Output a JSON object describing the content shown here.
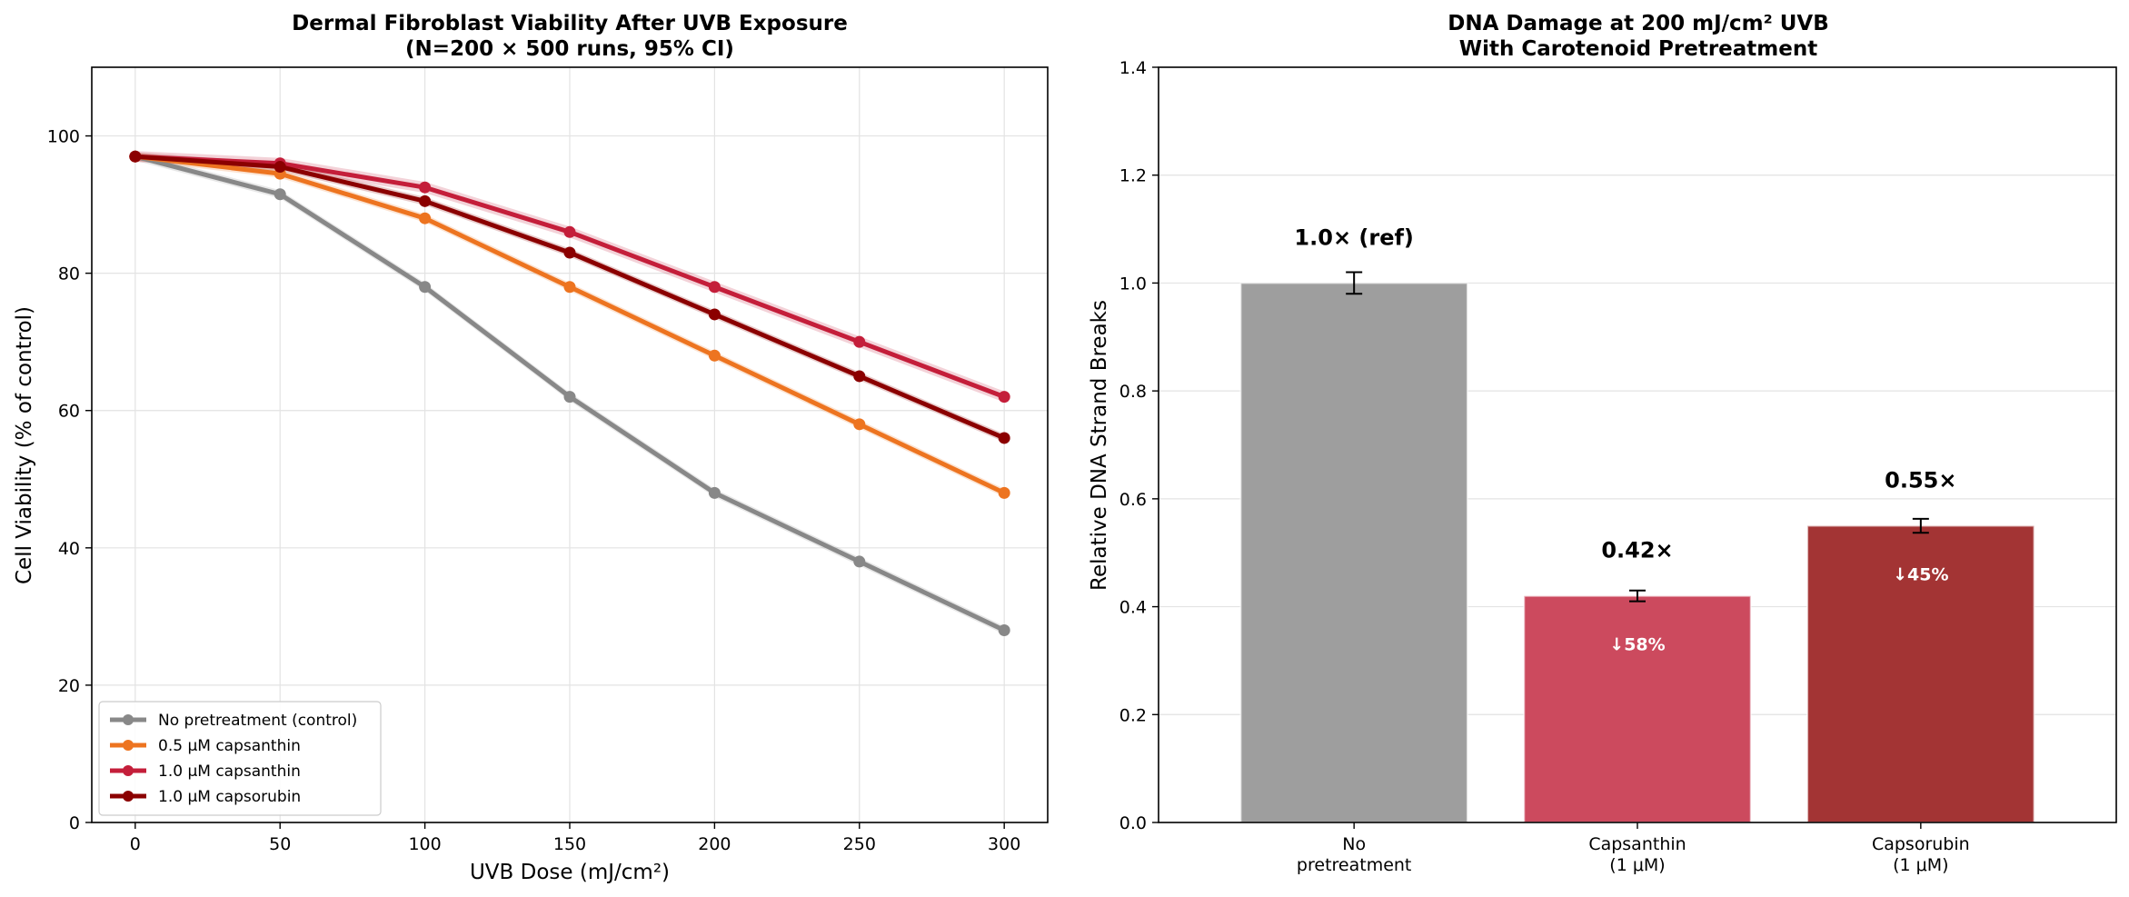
{
  "chart_data": [
    {
      "type": "line",
      "title_lines": [
        "Dermal Fibroblast Viability After UVB Exposure",
        "(N=200 × 500 runs, 95% CI)"
      ],
      "xlabel": "UVB Dose (mJ/cm²)",
      "ylabel": "Cell Viability (% of control)",
      "x": [
        0,
        50,
        100,
        150,
        200,
        250,
        300
      ],
      "xlim": [
        -15,
        315
      ],
      "ylim": [
        0,
        110
      ],
      "xticks": [
        0,
        50,
        100,
        150,
        200,
        250,
        300
      ],
      "yticks": [
        0,
        20,
        40,
        60,
        80,
        100
      ],
      "grid": true,
      "legend_position": "lower-left",
      "series": [
        {
          "name": "No pretreatment (control)",
          "color": "#888888",
          "values": [
            97,
            91.5,
            78,
            62,
            48,
            38,
            28
          ],
          "ci": 0.6
        },
        {
          "name": "0.5 μM capsanthin",
          "color": "#ed7420",
          "values": [
            97,
            94.5,
            88,
            78,
            68,
            58,
            48
          ],
          "ci": 0.6
        },
        {
          "name": "1.0 μM capsanthin",
          "color": "#c41e3a",
          "values": [
            97,
            96,
            92.5,
            86,
            78,
            70,
            62
          ],
          "ci": 0.8
        },
        {
          "name": "1.0 μM capsorubin",
          "color": "#8b0000",
          "values": [
            97,
            95.5,
            90.5,
            83,
            74,
            65,
            56
          ],
          "ci": 0.6
        }
      ]
    },
    {
      "type": "bar",
      "title_lines": [
        "DNA Damage at 200 mJ/cm² UVB",
        "With Carotenoid Pretreatment"
      ],
      "xlabel": "",
      "ylabel": "Relative DNA Strand Breaks",
      "ylim": [
        0,
        1.4
      ],
      "yticks": [
        0.0,
        0.2,
        0.4,
        0.6,
        0.8,
        1.0,
        1.2,
        1.4
      ],
      "grid": true,
      "categories": [
        [
          "No",
          "pretreatment"
        ],
        [
          "Capsanthin",
          "(1 μM)"
        ],
        [
          "Capsorubin",
          "(1 μM)"
        ]
      ],
      "values": [
        1.0,
        0.42,
        0.55
      ],
      "errors": [
        0.02,
        0.01,
        0.013
      ],
      "colors": [
        "#9e9e9e",
        "#cc4a5e",
        "#a33434"
      ],
      "value_labels": [
        "1.0× (ref)",
        "0.42×",
        "0.55×"
      ],
      "reduction_labels": [
        "",
        "↓58%",
        "↓45%"
      ]
    }
  ]
}
